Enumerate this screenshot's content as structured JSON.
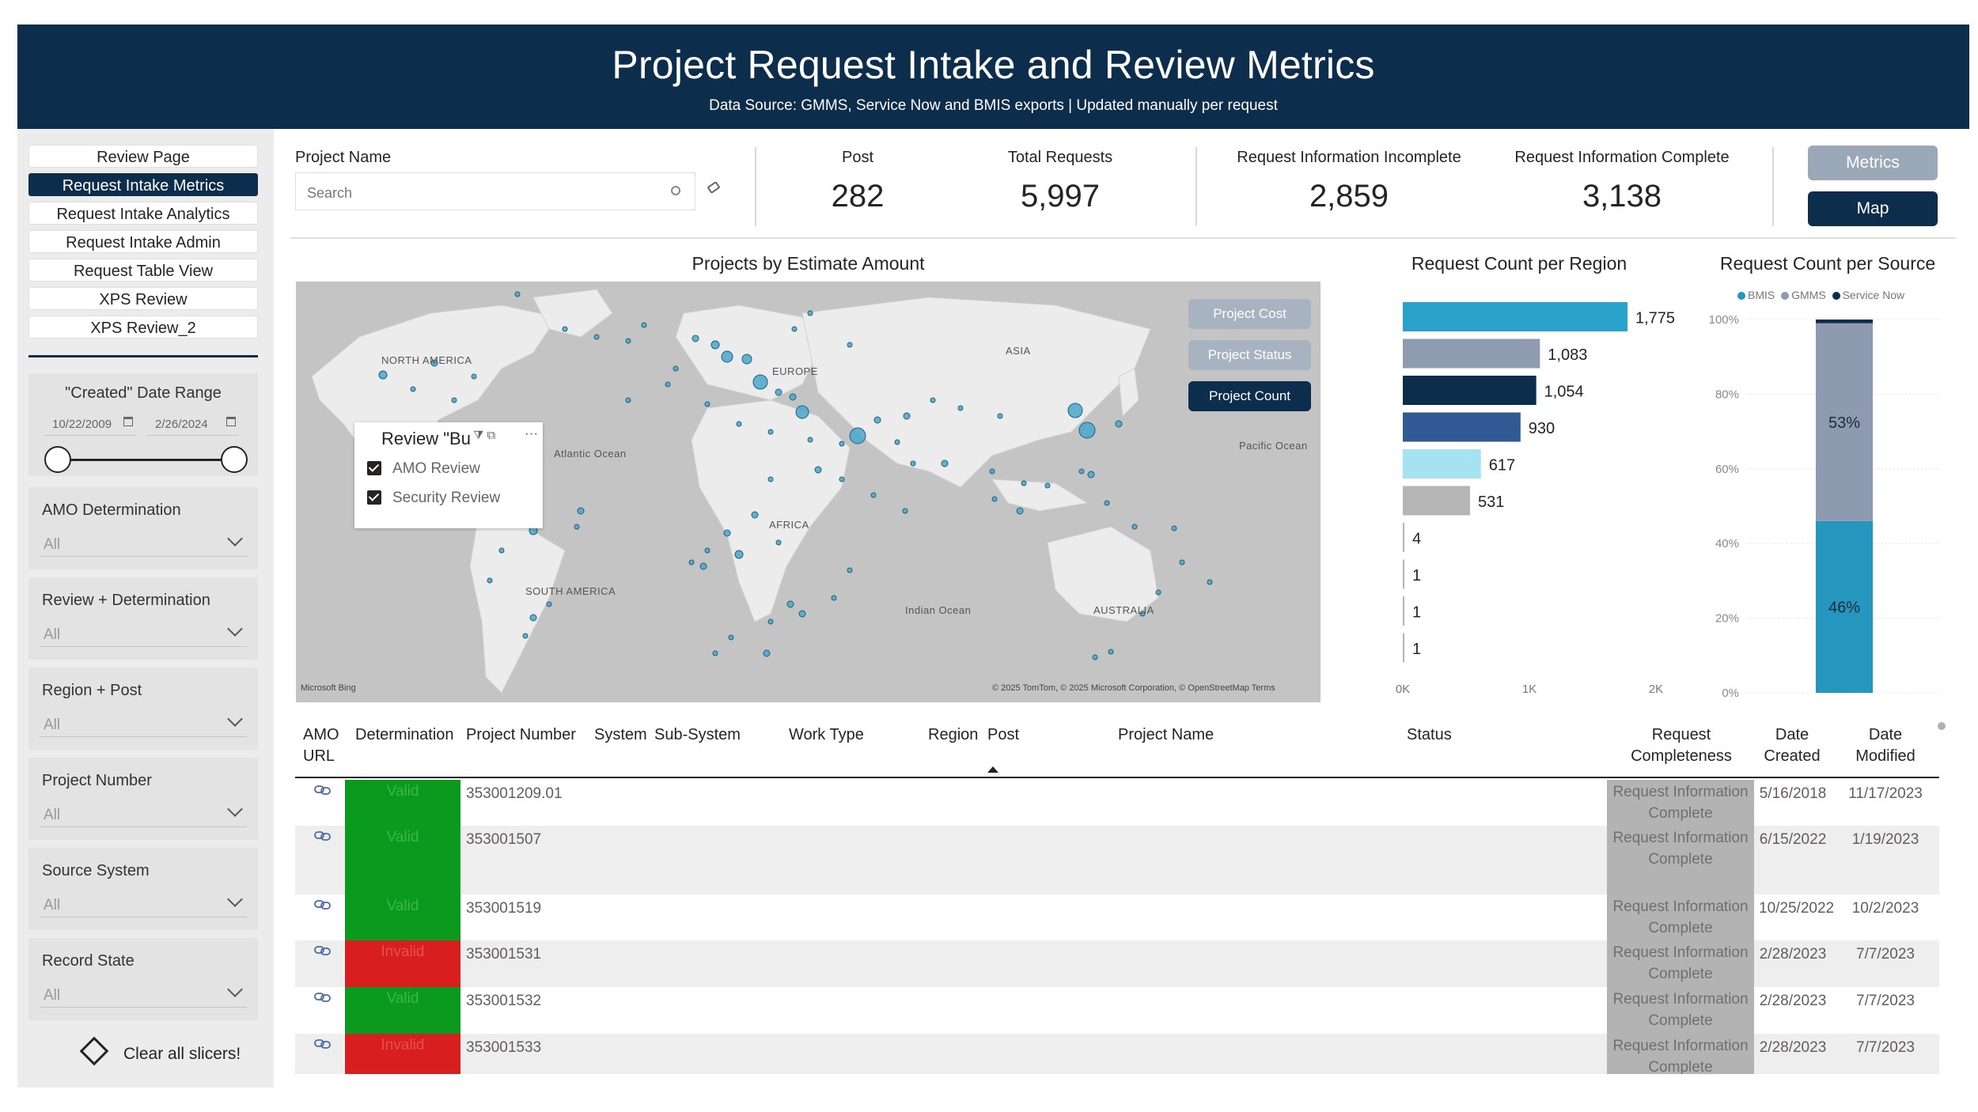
{
  "header": {
    "title": "Project Request Intake and Review Metrics",
    "subtitle": "Data Source: GMMS, Service Now and BMIS exports | Updated manually per request"
  },
  "nav": [
    {
      "label": "Review Page",
      "active": false
    },
    {
      "label": "Request Intake Metrics",
      "active": true
    },
    {
      "label": "Request Intake Analytics",
      "active": false
    },
    {
      "label": "Request Intake Admin",
      "active": false
    },
    {
      "label": "Request Table View",
      "active": false
    },
    {
      "label": "XPS Review",
      "active": false
    },
    {
      "label": "XPS Review_2",
      "active": false
    }
  ],
  "date_slicer": {
    "label": "\"Created\" Date Range",
    "start": "10/22/2009",
    "end": "2/26/2024"
  },
  "slicers": [
    {
      "label": "AMO Determination",
      "value": "All"
    },
    {
      "label": "Review + Determination",
      "value": "All"
    },
    {
      "label": "Region + Post",
      "value": "All"
    },
    {
      "label": "Project Number",
      "value": "All"
    },
    {
      "label": "Source System",
      "value": "All"
    },
    {
      "label": "Record State",
      "value": "All"
    }
  ],
  "clear_label": "Clear all slicers!",
  "project_filter": {
    "label": "Project Name",
    "placeholder": "Search"
  },
  "kpis": {
    "post": {
      "label": "Post",
      "value": "282"
    },
    "total": {
      "label": "Total Requests",
      "value": "5,997"
    },
    "incomplete": {
      "label": "Request Information Incomplete",
      "value": "2,859"
    },
    "complete": {
      "label": "Request Information Complete",
      "value": "3,138"
    }
  },
  "page_buttons": {
    "metrics": "Metrics",
    "map": "Map"
  },
  "map": {
    "title": "Projects by Estimate Amount",
    "buttons": [
      "Project Cost",
      "Project Status",
      "Project Count"
    ],
    "labels": {
      "north_america": "NORTH AMERICA",
      "europe": "EUROPE",
      "asia": "ASIA",
      "africa": "AFRICA",
      "south_america": "SOUTH AMERICA",
      "australia": "AUSTRALIA",
      "atlantic": "Atlantic Ocean",
      "pacific": "Pacific Ocean",
      "indian": "Indian Ocean"
    },
    "bing": "Microsoft Bing",
    "credit": "© 2025 TomTom, © 2025 Microsoft Corporation, © OpenStreetMap  Terms",
    "colors": {
      "point": "#4aa7cc",
      "point_stroke": "#1f5f7a",
      "land": "#ececec",
      "water": "#c4c4c4"
    }
  },
  "review_legend": {
    "title": "Review \"Bu",
    "items": [
      "AMO Review",
      "Security Review"
    ]
  },
  "chart_data": [
    {
      "type": "bar",
      "orientation": "horizontal",
      "title": "Request Count per Region",
      "values": [
        1775,
        1083,
        1054,
        930,
        617,
        531,
        4,
        1,
        1,
        1
      ],
      "labels": [
        "1,775",
        "1,083",
        "1,054",
        "930",
        "617",
        "531",
        "4",
        "1",
        "1",
        "1"
      ],
      "colors": [
        "#2aa3cc",
        "#8e9bb0",
        "#0d2d4c",
        "#315a95",
        "#a5e3f3",
        "#b5b5b5",
        "#b5b5b5",
        "#b5b5b5",
        "#b5b5b5",
        "#b5b5b5"
      ],
      "xlim": [
        0,
        2000
      ],
      "xticks": [
        "0K",
        "1K",
        "2K"
      ]
    },
    {
      "type": "bar",
      "stacked": true,
      "title": "Request Count per Source",
      "series": [
        {
          "name": "BMIS",
          "value": 46,
          "label": "46%",
          "color": "#2596be"
        },
        {
          "name": "GMMS",
          "value": 53,
          "label": "53%",
          "color": "#8d9ab0"
        },
        {
          "name": "Service Now",
          "value": 1,
          "label": "",
          "color": "#0d2d4c"
        }
      ],
      "ylim": [
        0,
        100
      ],
      "yticks": [
        "0%",
        "20%",
        "40%",
        "60%",
        "80%",
        "100%"
      ]
    }
  ],
  "table": {
    "columns": {
      "amo": "AMO URL",
      "determination": "Determination",
      "project_number": "Project Number",
      "system": "System",
      "subsystem": "Sub-System",
      "work_type": "Work Type",
      "region": "Region",
      "post": "Post",
      "project_name": "Project Name",
      "status": "Status",
      "completeness": "Request Completeness",
      "created": "Date Created",
      "modified": "Date Modified"
    },
    "rows": [
      {
        "determination": "Valid",
        "project_number": "353001209.01",
        "completeness": "Request Information Complete",
        "created": "5/16/2018",
        "modified": "11/17/2023"
      },
      {
        "determination": "Valid",
        "project_number": "353001507",
        "completeness": "Request Information Complete",
        "created": "6/15/2022",
        "modified": "1/19/2023"
      },
      {
        "determination": "Valid",
        "project_number": "353001519",
        "completeness": "Request Information Complete",
        "created": "10/25/2022",
        "modified": "10/2/2023"
      },
      {
        "determination": "Invalid",
        "project_number": "353001531",
        "completeness": "Request Information Complete",
        "created": "2/28/2023",
        "modified": "7/7/2023"
      },
      {
        "determination": "Valid",
        "project_number": "353001532",
        "completeness": "Request Information Complete",
        "created": "2/28/2023",
        "modified": "7/7/2023"
      },
      {
        "determination": "Invalid",
        "project_number": "353001533",
        "completeness": "Request Information Complete",
        "created": "2/28/2023",
        "modified": "7/7/2023"
      }
    ]
  }
}
